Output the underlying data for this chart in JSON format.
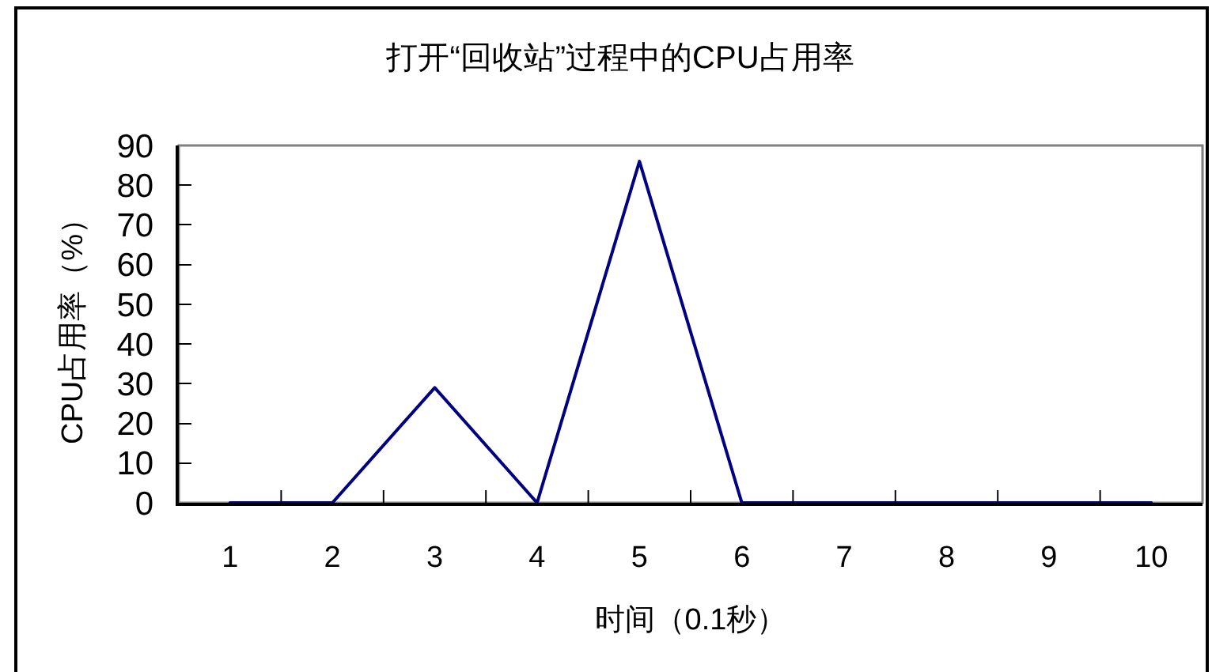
{
  "chart_data": {
    "type": "line",
    "title": "打开“回收站”过程中的CPU占用率",
    "xlabel": "时间（0.1秒）",
    "ylabel": "CPU占用率（%）",
    "categories": [
      "1",
      "2",
      "3",
      "4",
      "5",
      "6",
      "7",
      "8",
      "9",
      "10"
    ],
    "values": [
      0,
      0,
      29,
      0,
      86,
      0,
      0,
      0,
      0,
      0
    ],
    "color": "#000080",
    "marker": "none",
    "line_style": "solid",
    "ylim": [
      0,
      90
    ],
    "yticks": [
      0,
      10,
      20,
      30,
      40,
      50,
      60,
      70,
      80,
      90
    ]
  }
}
